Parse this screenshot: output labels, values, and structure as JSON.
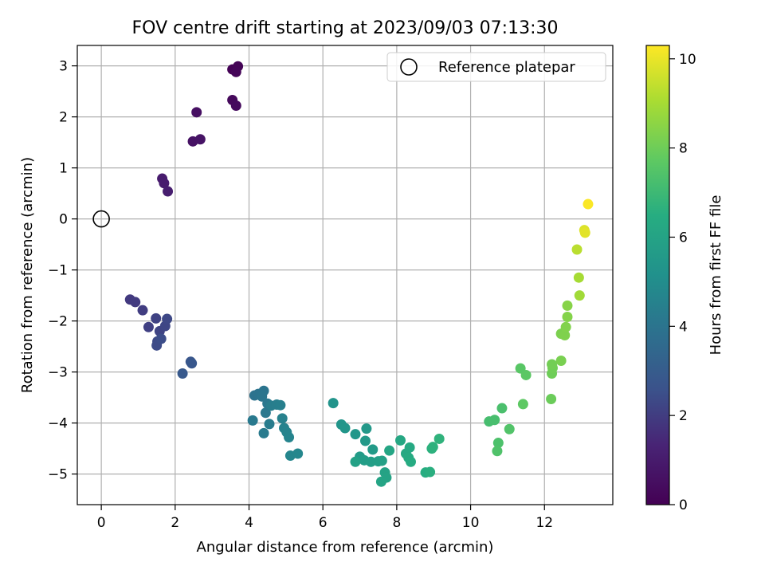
{
  "chart_data": {
    "type": "scatter",
    "title": "FOV centre drift starting at 2023/09/03 07:13:30",
    "xlabel": "Angular distance from reference (arcmin)",
    "ylabel": "Rotation from reference (arcmin)",
    "xlim": [
      -0.65,
      13.85
    ],
    "ylim": [
      -5.6,
      3.4
    ],
    "xticks": [
      0,
      2,
      4,
      6,
      8,
      10,
      12
    ],
    "yticks": [
      3,
      2,
      1,
      0,
      -1,
      -2,
      -3,
      -4,
      -5
    ],
    "xtick_labels": [
      "0",
      "2",
      "4",
      "6",
      "8",
      "10",
      "12"
    ],
    "ytick_labels": [
      "3",
      "2",
      "1",
      "0",
      "−1",
      "−2",
      "−3",
      "−4",
      "−5"
    ],
    "grid": true,
    "colormap": "viridis",
    "colorbar": {
      "label": "Hours from first FF file",
      "range": [
        0,
        10.3
      ],
      "ticks": [
        0,
        2,
        4,
        6,
        8,
        10
      ],
      "tick_labels": [
        "0",
        "2",
        "4",
        "6",
        "8",
        "10"
      ]
    },
    "reference": {
      "x": 0,
      "y": 0,
      "label": "Reference platepar"
    },
    "legend_position": "top-right",
    "points": [
      {
        "x": 3.55,
        "y": 2.93,
        "h": 0.05
      },
      {
        "x": 3.7,
        "y": 2.99,
        "h": 0.1
      },
      {
        "x": 3.65,
        "y": 2.88,
        "h": 0.15
      },
      {
        "x": 3.55,
        "y": 2.33,
        "h": 0.3
      },
      {
        "x": 3.65,
        "y": 2.22,
        "h": 0.35
      },
      {
        "x": 2.58,
        "y": 2.09,
        "h": 0.55
      },
      {
        "x": 2.48,
        "y": 1.52,
        "h": 0.65
      },
      {
        "x": 2.68,
        "y": 1.56,
        "h": 0.7
      },
      {
        "x": 1.65,
        "y": 0.79,
        "h": 1.0
      },
      {
        "x": 1.7,
        "y": 0.7,
        "h": 1.05
      },
      {
        "x": 1.8,
        "y": 0.54,
        "h": 1.1
      },
      {
        "x": 0.78,
        "y": -1.58,
        "h": 1.9
      },
      {
        "x": 0.92,
        "y": -1.63,
        "h": 1.95
      },
      {
        "x": 1.12,
        "y": -1.79,
        "h": 2.0
      },
      {
        "x": 1.28,
        "y": -2.12,
        "h": 2.1
      },
      {
        "x": 1.48,
        "y": -1.95,
        "h": 2.15
      },
      {
        "x": 1.58,
        "y": -2.2,
        "h": 2.2
      },
      {
        "x": 1.73,
        "y": -2.1,
        "h": 2.25
      },
      {
        "x": 1.78,
        "y": -1.96,
        "h": 2.3
      },
      {
        "x": 1.52,
        "y": -2.4,
        "h": 2.35
      },
      {
        "x": 1.5,
        "y": -2.48,
        "h": 2.4
      },
      {
        "x": 1.62,
        "y": -2.35,
        "h": 2.45
      },
      {
        "x": 2.42,
        "y": -2.8,
        "h": 2.75
      },
      {
        "x": 2.45,
        "y": -2.83,
        "h": 2.8
      },
      {
        "x": 2.2,
        "y": -3.03,
        "h": 2.85
      },
      {
        "x": 4.15,
        "y": -3.46,
        "h": 3.9
      },
      {
        "x": 4.25,
        "y": -3.43,
        "h": 3.95
      },
      {
        "x": 4.4,
        "y": -3.37,
        "h": 4.0
      },
      {
        "x": 4.35,
        "y": -3.48,
        "h": 4.05
      },
      {
        "x": 4.5,
        "y": -3.62,
        "h": 4.1
      },
      {
        "x": 4.45,
        "y": -3.8,
        "h": 4.15
      },
      {
        "x": 4.1,
        "y": -3.95,
        "h": 4.2
      },
      {
        "x": 4.4,
        "y": -4.2,
        "h": 4.25
      },
      {
        "x": 4.55,
        "y": -4.02,
        "h": 4.3
      },
      {
        "x": 4.6,
        "y": -3.66,
        "h": 4.35
      },
      {
        "x": 4.75,
        "y": -3.64,
        "h": 4.4
      },
      {
        "x": 4.85,
        "y": -3.65,
        "h": 4.45
      },
      {
        "x": 4.9,
        "y": -3.91,
        "h": 4.5
      },
      {
        "x": 4.95,
        "y": -4.1,
        "h": 4.55
      },
      {
        "x": 5.02,
        "y": -4.18,
        "h": 4.6
      },
      {
        "x": 5.08,
        "y": -4.28,
        "h": 4.65
      },
      {
        "x": 5.12,
        "y": -4.64,
        "h": 4.7
      },
      {
        "x": 5.32,
        "y": -4.6,
        "h": 4.75
      },
      {
        "x": 6.28,
        "y": -3.61,
        "h": 5.3
      },
      {
        "x": 6.5,
        "y": -4.03,
        "h": 5.35
      },
      {
        "x": 6.6,
        "y": -4.1,
        "h": 5.4
      },
      {
        "x": 6.88,
        "y": -4.22,
        "h": 5.45
      },
      {
        "x": 7.18,
        "y": -4.11,
        "h": 5.5
      },
      {
        "x": 7.15,
        "y": -4.35,
        "h": 5.55
      },
      {
        "x": 7.35,
        "y": -4.52,
        "h": 5.6
      },
      {
        "x": 7.0,
        "y": -4.66,
        "h": 5.65
      },
      {
        "x": 7.12,
        "y": -4.73,
        "h": 5.7
      },
      {
        "x": 7.3,
        "y": -4.76,
        "h": 5.75
      },
      {
        "x": 7.5,
        "y": -4.75,
        "h": 5.8
      },
      {
        "x": 7.6,
        "y": -4.74,
        "h": 5.85
      },
      {
        "x": 6.88,
        "y": -4.76,
        "h": 5.9
      },
      {
        "x": 7.68,
        "y": -4.97,
        "h": 5.95
      },
      {
        "x": 7.72,
        "y": -5.07,
        "h": 6.0
      },
      {
        "x": 7.58,
        "y": -5.15,
        "h": 6.05
      },
      {
        "x": 7.8,
        "y": -4.54,
        "h": 6.1
      },
      {
        "x": 8.1,
        "y": -4.34,
        "h": 6.2
      },
      {
        "x": 8.25,
        "y": -4.6,
        "h": 6.25
      },
      {
        "x": 8.35,
        "y": -4.48,
        "h": 6.3
      },
      {
        "x": 8.32,
        "y": -4.68,
        "h": 6.35
      },
      {
        "x": 8.38,
        "y": -4.76,
        "h": 6.4
      },
      {
        "x": 8.78,
        "y": -4.97,
        "h": 6.5
      },
      {
        "x": 8.9,
        "y": -4.96,
        "h": 6.55
      },
      {
        "x": 8.95,
        "y": -4.5,
        "h": 6.6
      },
      {
        "x": 8.98,
        "y": -4.47,
        "h": 6.65
      },
      {
        "x": 9.15,
        "y": -4.31,
        "h": 6.7
      },
      {
        "x": 10.5,
        "y": -3.97,
        "h": 7.2
      },
      {
        "x": 10.65,
        "y": -3.94,
        "h": 7.25
      },
      {
        "x": 10.85,
        "y": -3.71,
        "h": 7.3
      },
      {
        "x": 10.75,
        "y": -4.39,
        "h": 7.35
      },
      {
        "x": 10.72,
        "y": -4.55,
        "h": 7.4
      },
      {
        "x": 11.05,
        "y": -4.12,
        "h": 7.45
      },
      {
        "x": 11.35,
        "y": -2.93,
        "h": 7.6
      },
      {
        "x": 11.5,
        "y": -3.06,
        "h": 7.65
      },
      {
        "x": 11.42,
        "y": -3.63,
        "h": 7.7
      },
      {
        "x": 12.18,
        "y": -3.53,
        "h": 7.95
      },
      {
        "x": 12.2,
        "y": -3.03,
        "h": 8.0
      },
      {
        "x": 12.22,
        "y": -2.92,
        "h": 8.05
      },
      {
        "x": 12.2,
        "y": -2.85,
        "h": 8.1
      },
      {
        "x": 12.45,
        "y": -2.78,
        "h": 8.2
      },
      {
        "x": 12.45,
        "y": -2.25,
        "h": 8.25
      },
      {
        "x": 12.55,
        "y": -2.28,
        "h": 8.3
      },
      {
        "x": 12.58,
        "y": -2.12,
        "h": 8.35
      },
      {
        "x": 12.62,
        "y": -1.92,
        "h": 8.4
      },
      {
        "x": 12.62,
        "y": -1.7,
        "h": 8.45
      },
      {
        "x": 12.95,
        "y": -1.5,
        "h": 8.9
      },
      {
        "x": 12.93,
        "y": -1.15,
        "h": 9.0
      },
      {
        "x": 12.88,
        "y": -0.6,
        "h": 9.3
      },
      {
        "x": 13.08,
        "y": -0.22,
        "h": 9.8
      },
      {
        "x": 13.1,
        "y": -0.27,
        "h": 9.9
      },
      {
        "x": 13.18,
        "y": 0.29,
        "h": 10.25
      }
    ]
  }
}
